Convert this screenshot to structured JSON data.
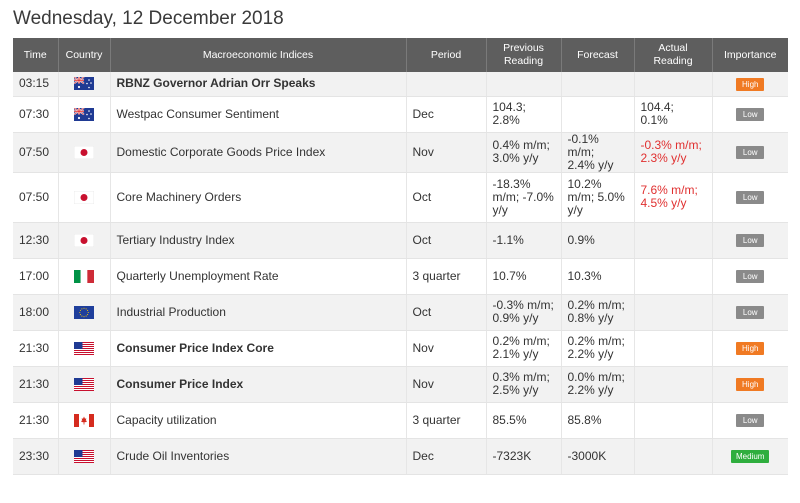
{
  "page": {
    "title": "Wednesday, 12 December 2018"
  },
  "columns": {
    "time": "Time",
    "country": "Country",
    "indices": "Macroeconomic Indices",
    "period": "Period",
    "previous_line1": "Previous",
    "previous_line2": "Reading",
    "forecast": "Forecast",
    "actual_line1": "Actual",
    "actual_line2": "Reading",
    "importance": "Importance"
  },
  "colors": {
    "header_bg": "#5e5e5e",
    "high": "#f07a23",
    "low": "#8a8a8a",
    "medium": "#2fae3e",
    "actual_negative": "#e03030"
  },
  "rows": [
    {
      "time": "03:15",
      "flag": "australia-flag-icon",
      "name": "RBNZ Governor Adrian Orr Speaks",
      "bold": true,
      "period": "",
      "previous": [
        "",
        ""
      ],
      "forecast": [
        "",
        ""
      ],
      "actual": [
        "",
        ""
      ],
      "actual_neg": false,
      "importance": "High"
    },
    {
      "time": "07:30",
      "flag": "australia-flag-icon",
      "name": "Westpac Consumer Sentiment",
      "bold": false,
      "period": "Dec",
      "previous": [
        "104.3;",
        "2.8%"
      ],
      "forecast": [
        "",
        ""
      ],
      "actual": [
        "104.4;",
        "0.1%"
      ],
      "actual_neg": false,
      "importance": "Low"
    },
    {
      "time": "07:50",
      "flag": "japan-flag-icon",
      "name": "Domestic Corporate Goods Price Index",
      "bold": false,
      "period": "Nov",
      "previous": [
        "0.4% m/m;",
        "3.0% y/y"
      ],
      "forecast": [
        "-0.1% m/m;",
        "2.4% y/y"
      ],
      "actual": [
        "-0.3% m/m;",
        "2.3% y/y"
      ],
      "actual_neg": true,
      "importance": "Low"
    },
    {
      "time": "07:50",
      "flag": "japan-flag-icon",
      "name": "Core Machinery Orders",
      "bold": false,
      "period": "Oct",
      "previous": [
        "-18.3%",
        "m/m; -7.0%",
        "y/y"
      ],
      "forecast": [
        "10.2%",
        "m/m; 5.0%",
        "y/y"
      ],
      "actual": [
        "7.6% m/m;",
        "4.5% y/y"
      ],
      "actual_neg": true,
      "importance": "Low"
    },
    {
      "time": "12:30",
      "flag": "japan-flag-icon",
      "name": "Tertiary Industry Index",
      "bold": false,
      "period": "Oct",
      "previous": [
        "-1.1%"
      ],
      "forecast": [
        "0.9%"
      ],
      "actual": [
        ""
      ],
      "actual_neg": false,
      "importance": "Low"
    },
    {
      "time": "17:00",
      "flag": "italy-flag-icon",
      "name": "Quarterly Unemployment Rate",
      "bold": false,
      "period": "3 quarter",
      "previous": [
        "10.7%"
      ],
      "forecast": [
        "10.3%"
      ],
      "actual": [
        ""
      ],
      "actual_neg": false,
      "importance": "Low"
    },
    {
      "time": "18:00",
      "flag": "eu-flag-icon",
      "name": "Industrial Production",
      "bold": false,
      "period": "Oct",
      "previous": [
        "-0.3% m/m;",
        "0.9% y/y"
      ],
      "forecast": [
        "0.2% m/m;",
        "0.8% y/y"
      ],
      "actual": [
        ""
      ],
      "actual_neg": false,
      "importance": "Low"
    },
    {
      "time": "21:30",
      "flag": "usa-flag-icon",
      "name": "Consumer Price Index Core",
      "bold": true,
      "period": "Nov",
      "previous": [
        "0.2% m/m;",
        "2.1% y/y"
      ],
      "forecast": [
        "0.2% m/m;",
        "2.2% y/y"
      ],
      "actual": [
        ""
      ],
      "actual_neg": false,
      "importance": "High"
    },
    {
      "time": "21:30",
      "flag": "usa-flag-icon",
      "name": "Consumer Price Index",
      "bold": true,
      "period": "Nov",
      "previous": [
        "0.3% m/m;",
        "2.5% y/y"
      ],
      "forecast": [
        "0.0% m/m;",
        "2.2% y/y"
      ],
      "actual": [
        ""
      ],
      "actual_neg": false,
      "importance": "High"
    },
    {
      "time": "21:30",
      "flag": "canada-flag-icon",
      "name": "Capacity utilization",
      "bold": false,
      "period": "3 quarter",
      "previous": [
        "85.5%"
      ],
      "forecast": [
        "85.8%"
      ],
      "actual": [
        ""
      ],
      "actual_neg": false,
      "importance": "Low"
    },
    {
      "time": "23:30",
      "flag": "usa-flag-icon",
      "name": "Crude Oil Inventories",
      "bold": false,
      "period": "Dec",
      "previous": [
        "-7323K"
      ],
      "forecast": [
        "-3000K"
      ],
      "actual": [
        ""
      ],
      "actual_neg": false,
      "importance": "Medium"
    }
  ]
}
